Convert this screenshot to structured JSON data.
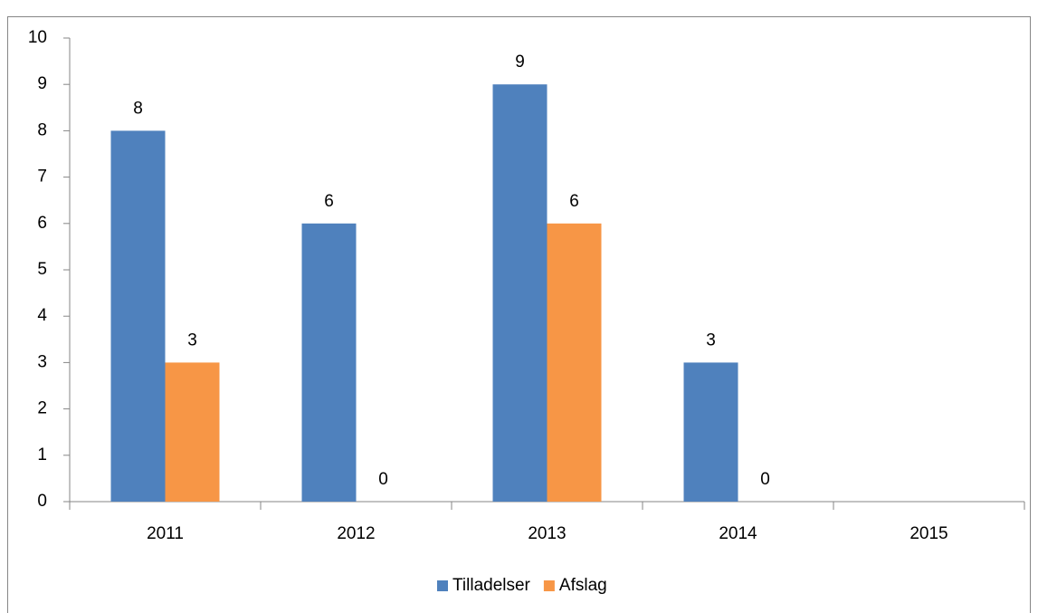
{
  "chart_data": {
    "type": "bar",
    "categories": [
      "2011",
      "2012",
      "2013",
      "2014",
      "2015"
    ],
    "series": [
      {
        "name": "Tilladelser",
        "color": "#4f81bd",
        "values": [
          8,
          6,
          9,
          3,
          null
        ]
      },
      {
        "name": "Afslag",
        "color": "#f79646",
        "values": [
          3,
          0,
          6,
          0,
          null
        ]
      }
    ],
    "ylim": [
      0,
      10
    ],
    "yticks": [
      0,
      1,
      2,
      3,
      4,
      5,
      6,
      7,
      8,
      9,
      10
    ],
    "legend": "bottom",
    "grid": false,
    "data_labels": true
  }
}
